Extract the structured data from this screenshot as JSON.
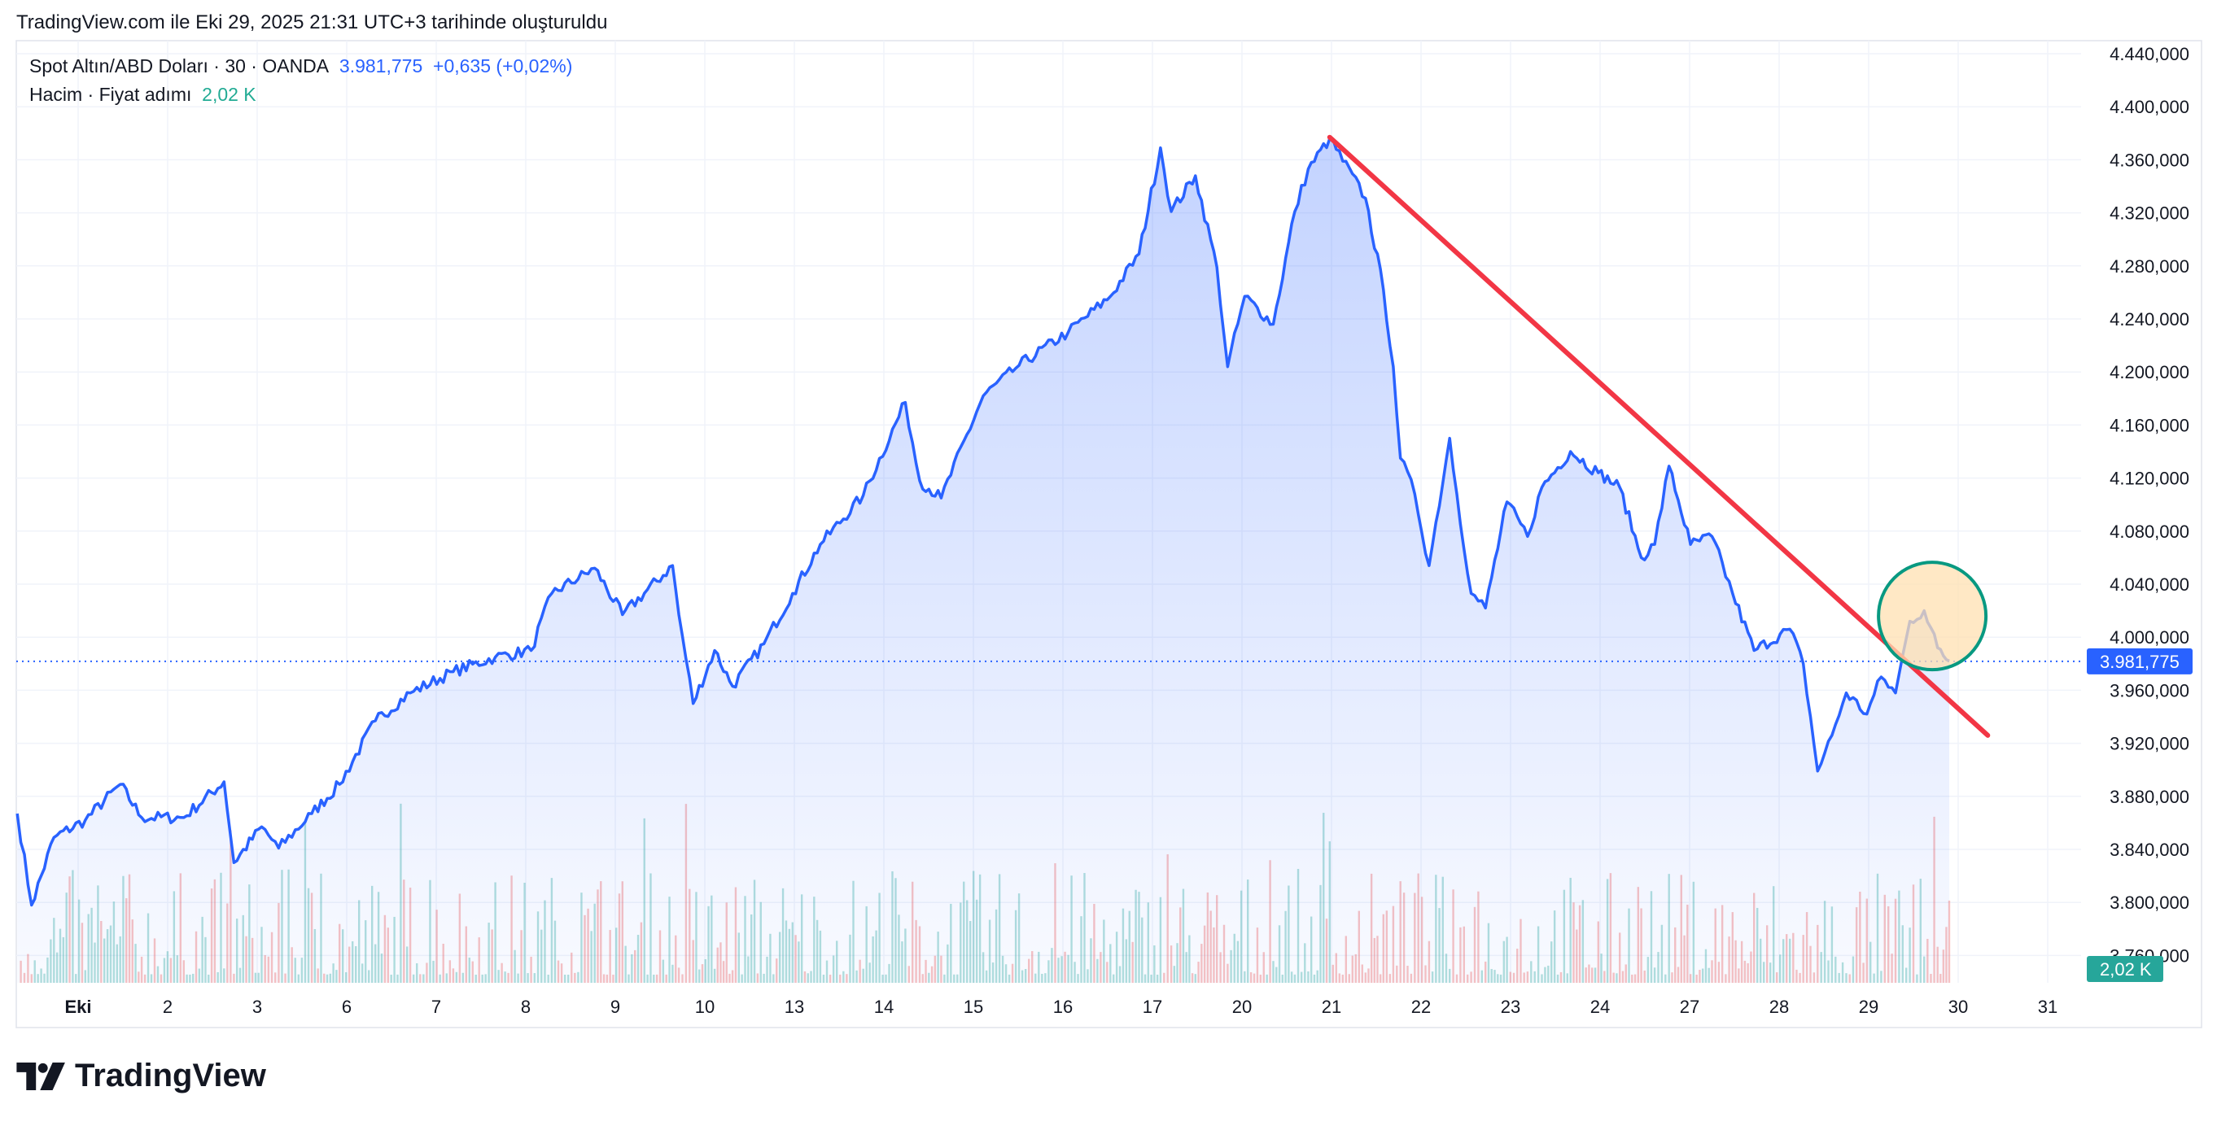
{
  "header": {
    "created": "TradingView.com ile Eki 29, 2025 21:31 UTC+3 tarihinde oluşturuldu"
  },
  "legend": {
    "symbol": "Spot Altın/ABD Doları · 30 · OANDA",
    "price": "3.981,775",
    "change": "+0,635 (+0,02%)",
    "volume_label": "Hacim · Fiyat adımı",
    "volume_value": "2,02 K"
  },
  "logo": {
    "text": "TradingView"
  },
  "colors": {
    "line": "#2962ff",
    "trend": "#f23645",
    "circle_stroke": "#089981",
    "circle_fill": "#ffe0b2",
    "vol_up": "#26a69a",
    "vol_down": "#ef5350"
  },
  "chart_data": {
    "type": "area",
    "title": "Spot Altın/ABD Doları · 30 · OANDA",
    "xlabel": "",
    "ylabel": "",
    "ylim": [
      3760,
      4440
    ],
    "grid": true,
    "x_ticks": [
      "Eki",
      "2",
      "3",
      "6",
      "7",
      "8",
      "9",
      "10",
      "13",
      "14",
      "15",
      "16",
      "17",
      "20",
      "21",
      "22",
      "23",
      "24",
      "27",
      "28",
      "29",
      "30",
      "31"
    ],
    "y_ticks": [
      "4.440,000",
      "4.400,000",
      "4.360,000",
      "4.320,000",
      "4.280,000",
      "4.240,000",
      "4.200,000",
      "4.160,000",
      "4.120,000",
      "4.080,000",
      "4.040,000",
      "4.000,000",
      "3.960,000",
      "3.920,000",
      "3.880,000",
      "3.840,000",
      "3.800,000",
      "3.760,000"
    ],
    "y_tick_values": [
      4440,
      4400,
      4360,
      4320,
      4280,
      4240,
      4200,
      4160,
      4120,
      4080,
      4040,
      4000,
      3960,
      3920,
      3880,
      3840,
      3800,
      3760
    ],
    "last_price": 3981.775,
    "last_price_label": "3.981,775",
    "volume_last_label": "2,02 K",
    "series": [
      {
        "name": "Spot Altın/ABD Doları",
        "x_session_index": [
          -0.68,
          -0.52,
          -0.27,
          0.08,
          0.47,
          0.71,
          1.18,
          1.63,
          1.74,
          2.05,
          2.24,
          2.61,
          2.92,
          3.32,
          3.71,
          4.19,
          4.66,
          5.06,
          5.29,
          5.77,
          6.08,
          6.64,
          6.71,
          6.87,
          7.11,
          7.31,
          7.66,
          7.98,
          8.29,
          8.77,
          9.24,
          9.4,
          9.64,
          10.11,
          10.51,
          11.06,
          11.53,
          11.85,
          12.09,
          12.21,
          12.48,
          12.72,
          12.84,
          13.03,
          13.35,
          13.59,
          13.74,
          13.98,
          14.38,
          14.58,
          14.69,
          14.77,
          14.93,
          15.09,
          15.32,
          15.4,
          15.56,
          15.72,
          15.96,
          16.19,
          16.35,
          16.67,
          16.98,
          17.22,
          17.46,
          17.61,
          17.77,
          18.01,
          18.25,
          18.48,
          18.72,
          19.12,
          19.27,
          19.43,
          19.59,
          19.75,
          19.98,
          20.14,
          20.3,
          20.46,
          20.62,
          20.77,
          20.9
        ],
        "values": [
          3867,
          3798,
          3849,
          3862,
          3889,
          3864,
          3864,
          3891,
          3830,
          3857,
          3841,
          3867,
          3889,
          3937,
          3958,
          3974,
          3985,
          3990,
          4033,
          4052,
          4017,
          4054,
          4017,
          3950,
          3990,
          3963,
          3995,
          4033,
          4070,
          4107,
          4177,
          4118,
          4105,
          4182,
          4205,
          4230,
          4257,
          4289,
          4369,
          4321,
          4348,
          4279,
          4204,
          4257,
          4236,
          4321,
          4353,
          4376,
          4331,
          4262,
          4204,
          4135,
          4108,
          4054,
          4150,
          4108,
          4033,
          4022,
          4102,
          4076,
          4113,
          4140,
          4124,
          4113,
          4060,
          4070,
          4129,
          4070,
          4076,
          4033,
          3990,
          4006,
          3980,
          3899,
          3926,
          3958,
          3942,
          3970,
          3958,
          4012,
          4020,
          3992,
          3982
        ]
      }
    ],
    "annotations": [
      {
        "type": "trendline",
        "from": [
          13.98,
          4377
        ],
        "to": [
          21.33,
          3926
        ]
      },
      {
        "type": "circle",
        "center": [
          20.71,
          4016
        ]
      }
    ]
  }
}
